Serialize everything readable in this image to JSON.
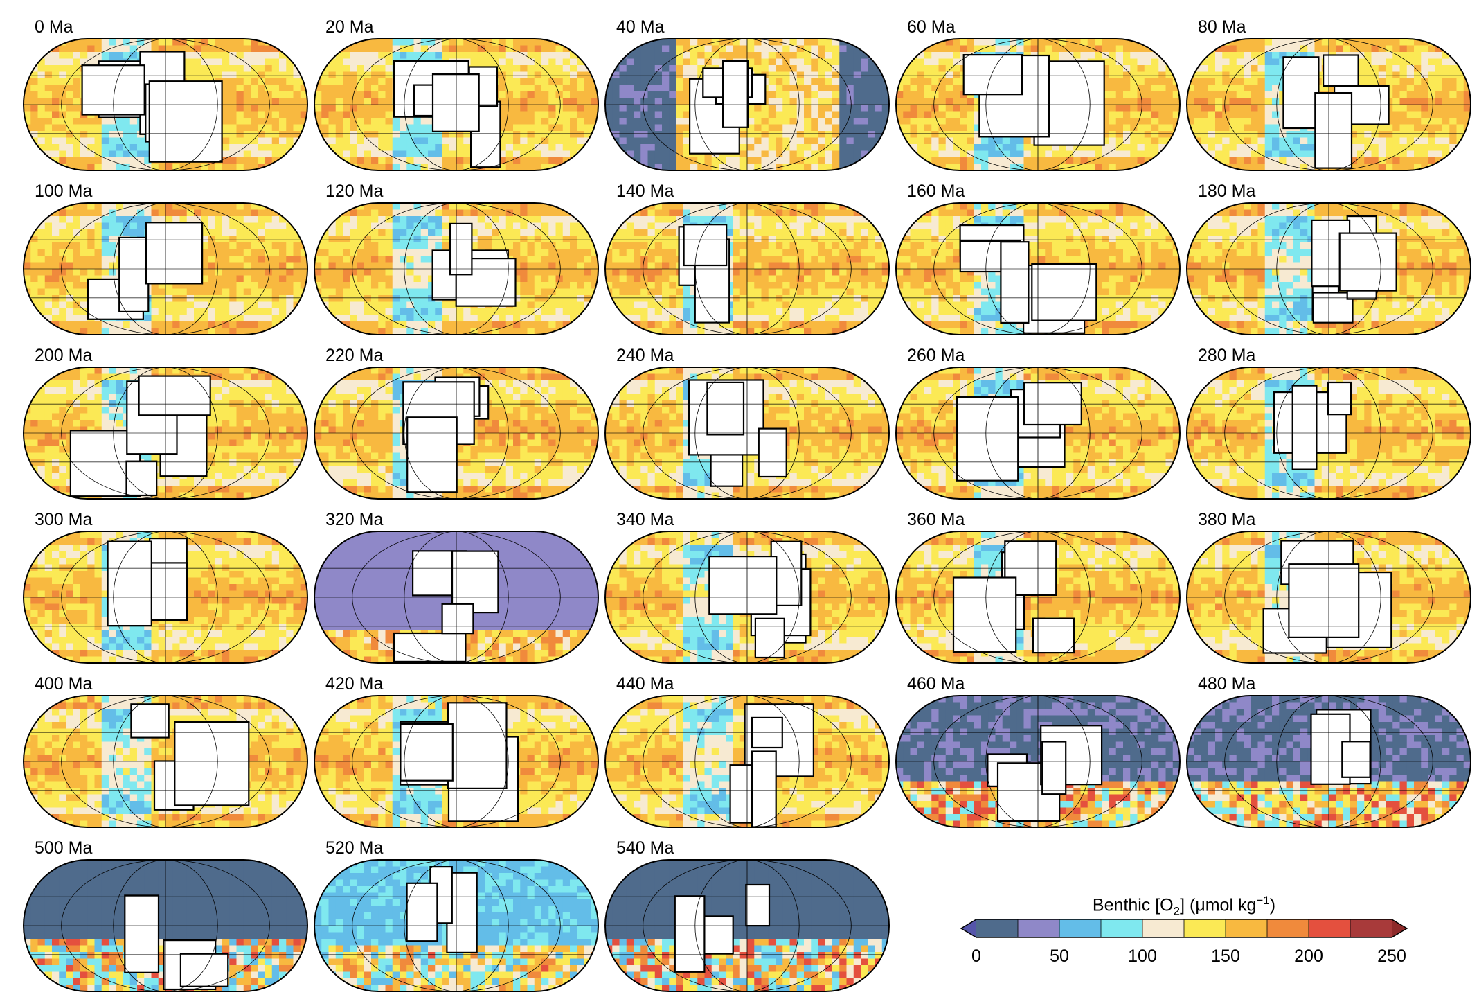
{
  "panels": [
    {
      "label": "0 Ma",
      "age_ma": 0
    },
    {
      "label": "20 Ma",
      "age_ma": 20
    },
    {
      "label": "40 Ma",
      "age_ma": 40
    },
    {
      "label": "60 Ma",
      "age_ma": 60
    },
    {
      "label": "80 Ma",
      "age_ma": 80
    },
    {
      "label": "100 Ma",
      "age_ma": 100
    },
    {
      "label": "120 Ma",
      "age_ma": 120
    },
    {
      "label": "140 Ma",
      "age_ma": 140
    },
    {
      "label": "160 Ma",
      "age_ma": 160
    },
    {
      "label": "180 Ma",
      "age_ma": 180
    },
    {
      "label": "200 Ma",
      "age_ma": 200
    },
    {
      "label": "220 Ma",
      "age_ma": 220
    },
    {
      "label": "240 Ma",
      "age_ma": 240
    },
    {
      "label": "260 Ma",
      "age_ma": 260
    },
    {
      "label": "280 Ma",
      "age_ma": 280
    },
    {
      "label": "300 Ma",
      "age_ma": 300
    },
    {
      "label": "320 Ma",
      "age_ma": 320
    },
    {
      "label": "340 Ma",
      "age_ma": 340
    },
    {
      "label": "360 Ma",
      "age_ma": 360
    },
    {
      "label": "380 Ma",
      "age_ma": 380
    },
    {
      "label": "400 Ma",
      "age_ma": 400
    },
    {
      "label": "420 Ma",
      "age_ma": 420
    },
    {
      "label": "440 Ma",
      "age_ma": 440
    },
    {
      "label": "460 Ma",
      "age_ma": 460
    },
    {
      "label": "480 Ma",
      "age_ma": 480
    },
    {
      "label": "500 Ma",
      "age_ma": 500
    },
    {
      "label": "520 Ma",
      "age_ma": 520
    },
    {
      "label": "540 Ma",
      "age_ma": 540
    }
  ],
  "colorbar": {
    "title_prefix": "Benthic [O",
    "title_sub": "2",
    "title_mid": "] (μmol kg",
    "title_sup": "−1",
    "title_suffix": ")",
    "min": 0,
    "max": 250,
    "step": 25,
    "tick_values": [
      0,
      50,
      100,
      150,
      200,
      250
    ],
    "tick_labels": [
      "0",
      "50",
      "100",
      "150",
      "200",
      "250"
    ],
    "colors": [
      "#4f6b8c",
      "#8f88c8",
      "#63bde8",
      "#7fe8ef",
      "#f7ead2",
      "#fbe955",
      "#f8b940",
      "#f08a3c",
      "#e4503e",
      "#a83a3a"
    ],
    "under_color": "#5555aa",
    "over_color": "#8e2a2a"
  },
  "colors": {
    "land": "#ffffff",
    "coastline": "#000000",
    "grid": "#000000"
  }
}
